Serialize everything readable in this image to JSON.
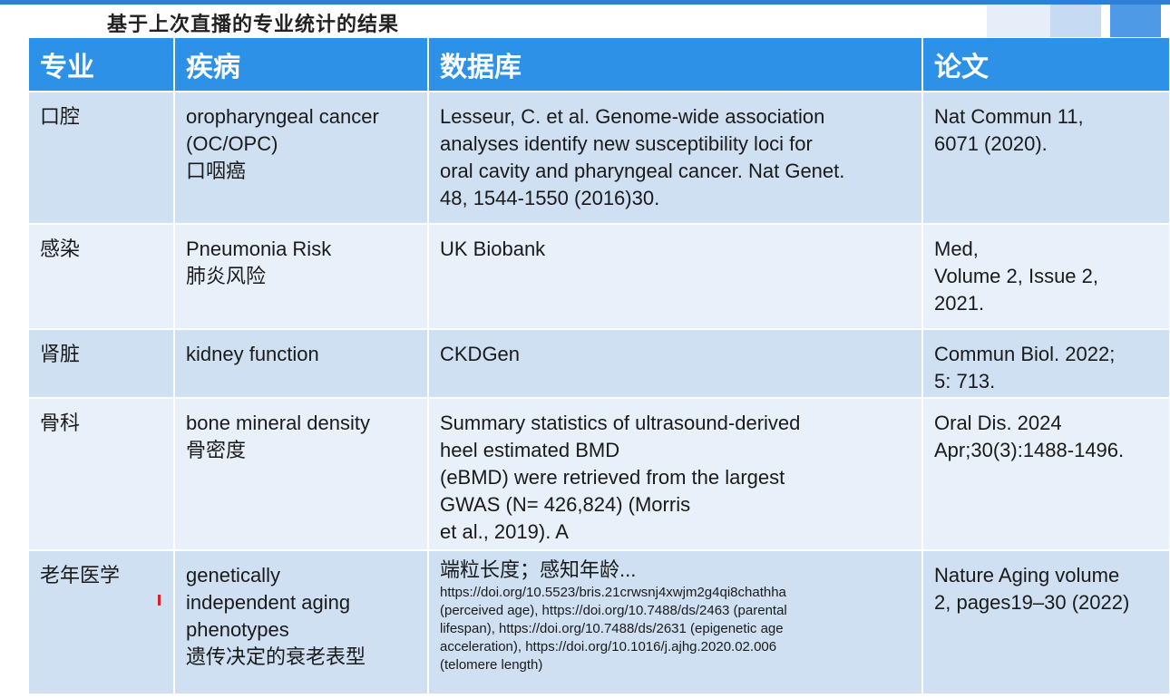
{
  "title": "基于上次直播的专业统计的结果",
  "columns": [
    "专业",
    "疾病",
    "数据库",
    "论文"
  ],
  "rows": [
    {
      "specialty": "口腔",
      "disease": [
        "oropharyngeal cancer",
        "(OC/OPC)",
        "口咽癌"
      ],
      "database": [
        "Lesseur, C. et al. Genome-wide association",
        "analyses identify new susceptibility loci for",
        "oral cavity and pharyngeal cancer. Nat Genet.",
        "48, 1544-1550 (2016)30."
      ],
      "paper": [
        "Nat Commun 11,",
        "6071 (2020)."
      ]
    },
    {
      "specialty": "感染",
      "disease": [
        "Pneumonia Risk",
        "肺炎风险"
      ],
      "database": [
        "UK Biobank"
      ],
      "paper": [
        "Med,",
        "Volume 2, Issue 2,",
        "2021."
      ]
    },
    {
      "specialty": "肾脏",
      "disease": [
        "kidney function"
      ],
      "database": [
        "CKDGen"
      ],
      "paper": [
        "Commun Biol. 2022;",
        "5: 713."
      ]
    },
    {
      "specialty": "骨科",
      "disease": [
        "bone mineral density",
        "骨密度"
      ],
      "database": [
        "Summary statistics of ultrasound-derived",
        "heel estimated BMD",
        "(eBMD) were retrieved from the largest",
        "GWAS (N= 426,824) (Morris",
        "et al., 2019). A"
      ],
      "paper": [
        "Oral Dis. 2024",
        "Apr;30(3):1488-1496."
      ]
    },
    {
      "specialty": "老年医学",
      "disease": [
        "genetically",
        "independent aging",
        "phenotypes",
        "遗传决定的衰老表型"
      ],
      "database_heading": "端粒长度；感知年龄...",
      "database_small": [
        "https://doi.org/10.5523/bris.21crwsnj4xwjm2g4qi8chathha",
        "(perceived age), https://doi.org/10.7488/ds/2463 (parental",
        "lifespan), https://doi.org/10.7488/ds/2631 (epigenetic age",
        "acceleration), https://doi.org/10.1016/j.ajhg.2020.02.006",
        "(telomere length)"
      ],
      "paper": [
        "Nature Aging volume",
        "2, pages19–30 (2022)"
      ]
    }
  ]
}
